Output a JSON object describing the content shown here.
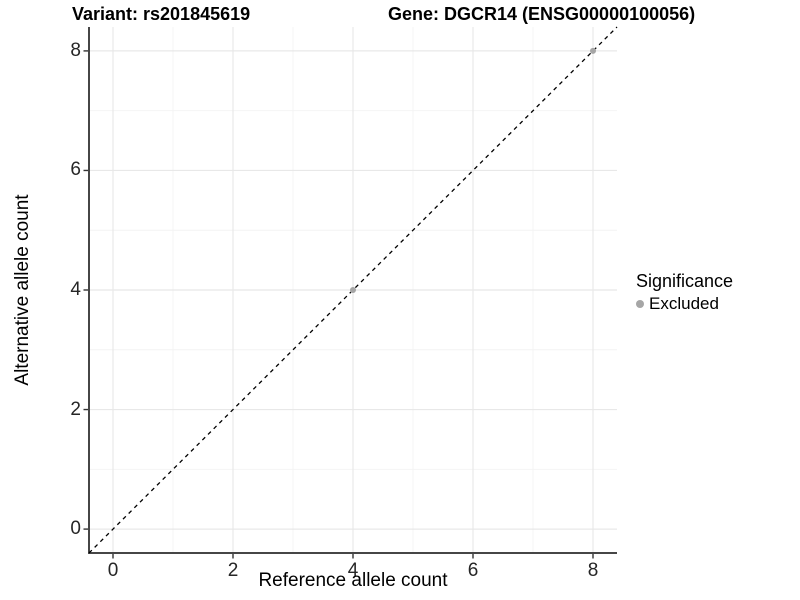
{
  "chart_data": {
    "type": "scatter",
    "titles": {
      "left": "Variant: rs201845619",
      "right": "Gene: DGCR14 (ENSG00000100056)"
    },
    "xlabel": "Reference allele count",
    "ylabel": "Alternative allele count",
    "xlim": [
      -0.4,
      8.4
    ],
    "ylim": [
      -0.4,
      8.4
    ],
    "x_ticks": [
      0,
      2,
      4,
      6,
      8
    ],
    "y_ticks": [
      0,
      2,
      4,
      6,
      8
    ],
    "x_minor": [
      1,
      3,
      5,
      7
    ],
    "y_minor": [
      1,
      3,
      5,
      7
    ],
    "grid": "major+minor",
    "reference_line": {
      "kind": "identity",
      "slope": 1,
      "intercept": 0,
      "style": "dashed",
      "color": "#000000"
    },
    "series": [
      {
        "name": "Excluded",
        "marker": "circle",
        "color": "#a6a6a6",
        "points": [
          [
            4,
            4
          ],
          [
            8,
            8
          ]
        ]
      }
    ],
    "legend": {
      "title": "Significance",
      "position": "right",
      "entries": [
        {
          "label": "Excluded",
          "color": "#a6a6a6"
        }
      ]
    }
  },
  "colors": {
    "axis_line": "#464646",
    "tick_mark": "#333333",
    "grid_major": "#e8e8e8",
    "grid_minor": "#f4f4f4",
    "background": "#ffffff"
  }
}
